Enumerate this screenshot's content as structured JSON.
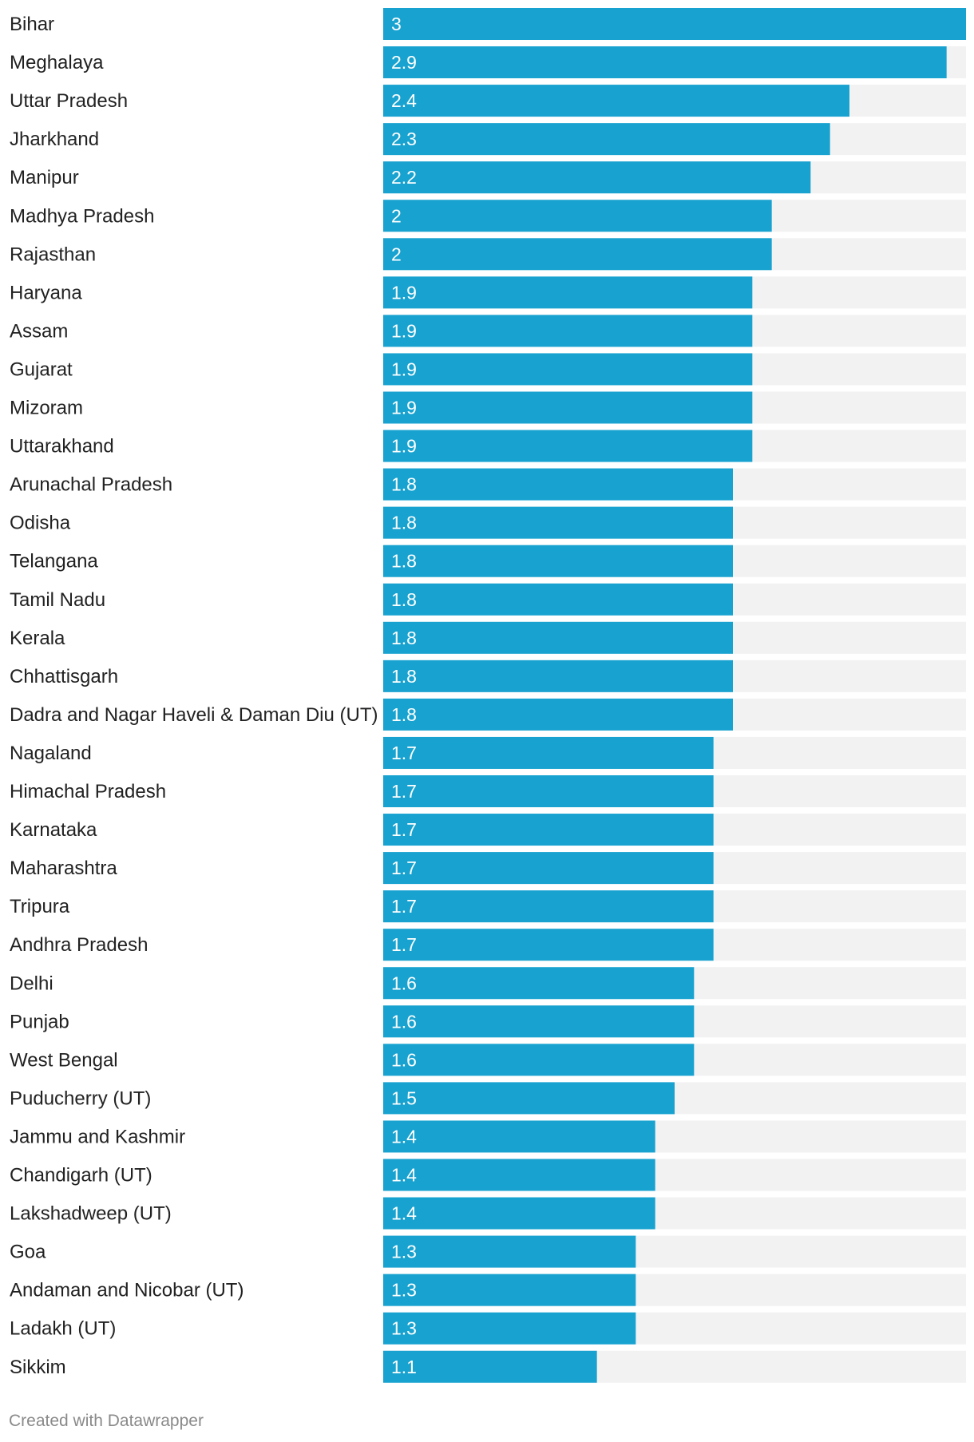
{
  "chart_data": {
    "type": "bar",
    "orientation": "horizontal",
    "categories": [
      "Bihar",
      "Meghalaya",
      "Uttar Pradesh",
      "Jharkhand",
      "Manipur",
      "Madhya Pradesh",
      "Rajasthan",
      "Haryana",
      "Assam",
      "Gujarat",
      "Mizoram",
      "Uttarakhand",
      "Arunachal Pradesh",
      "Odisha",
      "Telangana",
      "Tamil Nadu",
      "Kerala",
      "Chhattisgarh",
      "Dadra and Nagar Haveli & Daman Diu (UT)",
      "Nagaland",
      "Himachal Pradesh",
      "Karnataka",
      "Maharashtra",
      "Tripura",
      "Andhra Pradesh",
      "Delhi",
      "Punjab",
      "West Bengal",
      "Puducherry (UT)",
      "Jammu and Kashmir",
      "Chandigarh (UT)",
      "Lakshadweep (UT)",
      "Goa",
      "Andaman and Nicobar (UT)",
      "Ladakh (UT)",
      "Sikkim"
    ],
    "values": [
      3,
      2.9,
      2.4,
      2.3,
      2.2,
      2,
      2,
      1.9,
      1.9,
      1.9,
      1.9,
      1.9,
      1.8,
      1.8,
      1.8,
      1.8,
      1.8,
      1.8,
      1.8,
      1.7,
      1.7,
      1.7,
      1.7,
      1.7,
      1.7,
      1.6,
      1.6,
      1.6,
      1.5,
      1.4,
      1.4,
      1.4,
      1.3,
      1.3,
      1.3,
      1.1
    ],
    "xlim": [
      0,
      3
    ],
    "bar_color": "#17a2d0",
    "track_color": "#f2f2f2"
  },
  "footer": {
    "credit": "Created with Datawrapper"
  }
}
